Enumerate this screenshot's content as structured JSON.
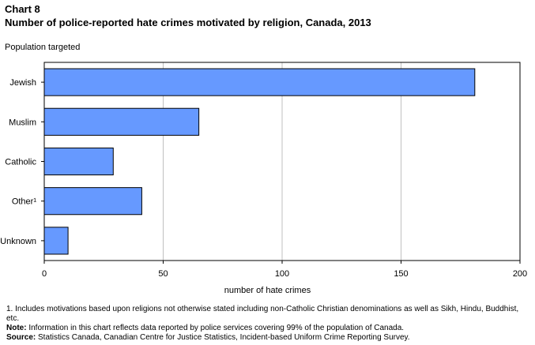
{
  "chart_data": {
    "type": "bar",
    "orientation": "horizontal",
    "label": "Chart 8",
    "title": "Number of police-reported hate crimes motivated by religion, Canada, 2013",
    "ylabel": "Population targeted",
    "xlabel": "number of hate crimes",
    "categories": [
      "Jewish",
      "Muslim",
      "Catholic",
      "Other¹",
      "Unknown"
    ],
    "values": [
      181,
      65,
      29,
      41,
      10
    ],
    "xlim": [
      0,
      200
    ],
    "xticks": [
      0,
      50,
      100,
      150,
      200
    ],
    "grid": "vertical",
    "legend": "none",
    "colors": {
      "bar": "#6699ff",
      "bar_border": "#000000",
      "grid": "#c0c0c0"
    }
  },
  "notes": {
    "footnote_1": "1. Includes motivations based upon religions not otherwise stated including non-Catholic Christian denominations as well as Sikh, Hindu, Buddhist, etc.",
    "note_label": "Note:",
    "note_text": " Information in this chart reflects data reported by police services covering 99% of the population of Canada.",
    "source_label": "Source:",
    "source_text": " Statistics Canada, Canadian Centre for Justice Statistics, Incident-based Uniform Crime Reporting Survey."
  }
}
